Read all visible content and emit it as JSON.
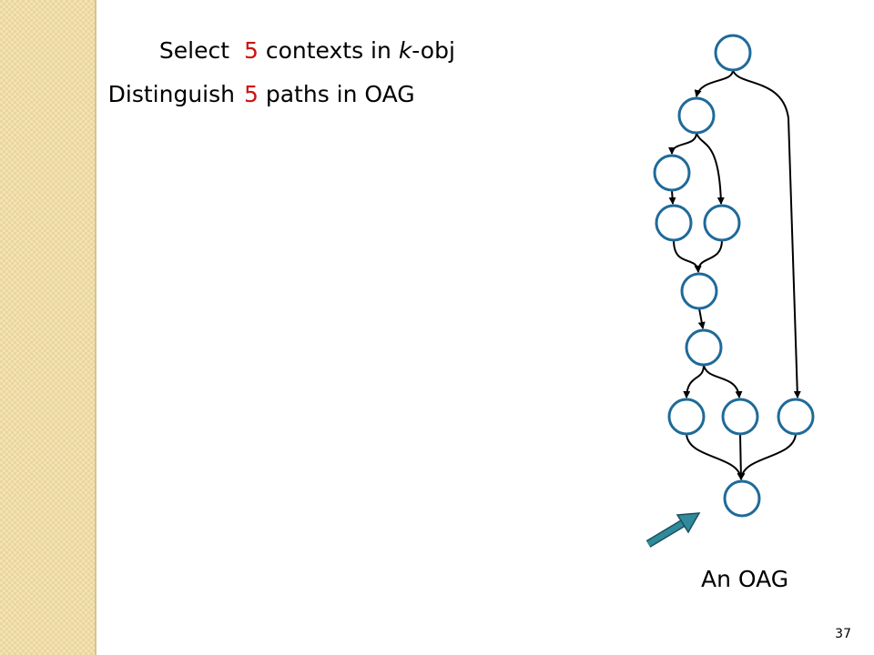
{
  "lines": [
    {
      "verb": "Select",
      "count": 5,
      "text": "contexts in",
      "italic": "k",
      "rest": "-obj"
    },
    {
      "verb": "Distinguish",
      "count": 5,
      "text": "paths in OAG"
    }
  ],
  "caption": "An OAG",
  "page_number": "37"
}
